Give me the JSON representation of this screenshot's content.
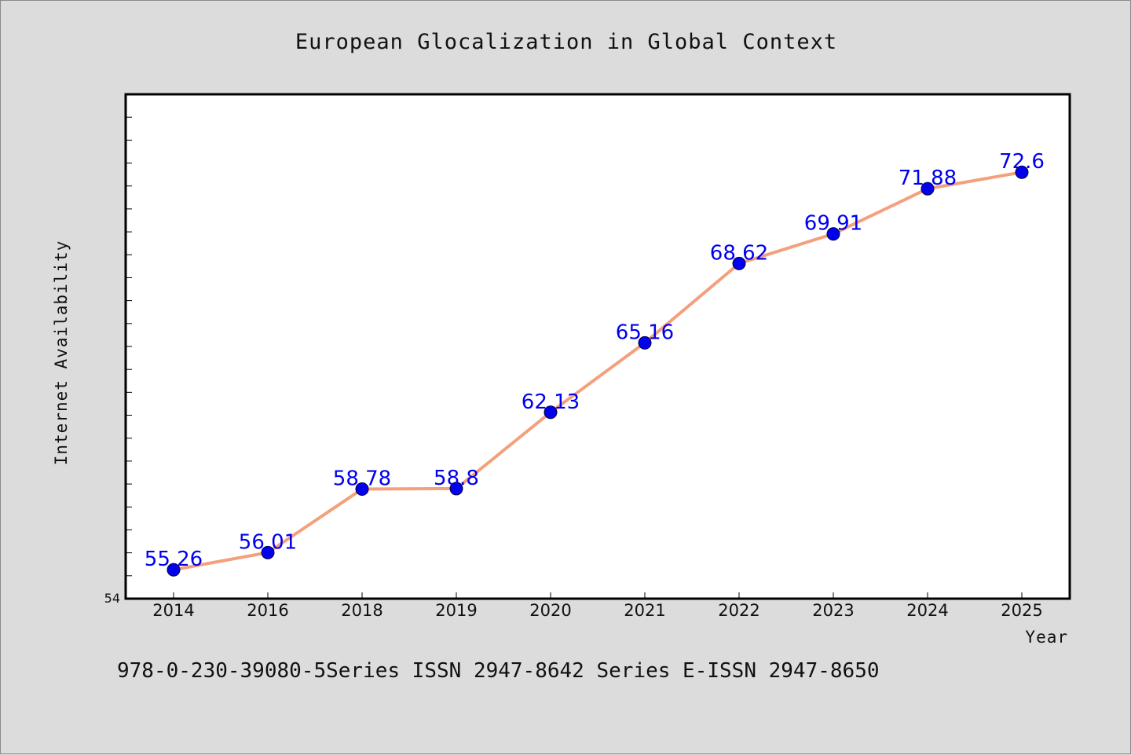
{
  "chart_data": {
    "type": "line",
    "title": "European Glocalization in Global Context",
    "xlabel": "Year",
    "ylabel": "Internet Availability",
    "categories": [
      "2014",
      "2016",
      "2018",
      "2019",
      "2020",
      "2021",
      "2022",
      "2023",
      "2024",
      "2025"
    ],
    "series": [
      {
        "values": [
          55.26,
          56.01,
          58.78,
          58.8,
          62.13,
          65.16,
          68.62,
          69.91,
          71.88,
          72.6
        ]
      }
    ],
    "data_labels": [
      "55.26",
      "56.01",
      "58.78",
      "58.8",
      "62.13",
      "65.16",
      "68.62",
      "69.91",
      "71.88",
      "72.6"
    ],
    "ylim": [
      54,
      76
    ],
    "ytick_labels": [
      "54"
    ],
    "grid": false,
    "line_color": "#f4a07c",
    "marker_color": "#0000ee",
    "label_color": "#0000ee"
  },
  "footer": {
    "text": "978-0-230-39080-5Series ISSN 2947-8642 Series E-ISSN 2947-8650"
  }
}
